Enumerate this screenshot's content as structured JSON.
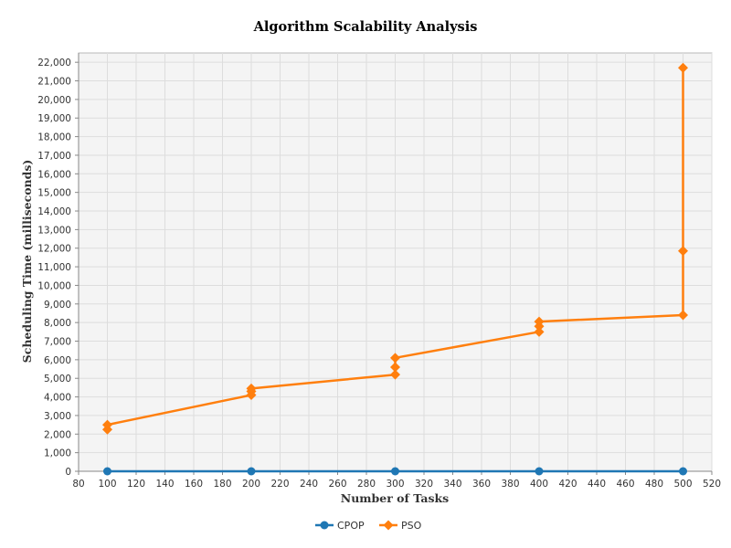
{
  "chart_data": {
    "type": "line",
    "title": "Algorithm Scalability Analysis",
    "xlabel": "Number of Tasks",
    "ylabel": "Scheduling Time (milliseconds)",
    "xlim": [
      80,
      520
    ],
    "ylim": [
      0,
      22500
    ],
    "x_ticks": [
      80,
      100,
      120,
      140,
      160,
      180,
      200,
      220,
      240,
      260,
      280,
      300,
      320,
      340,
      360,
      380,
      400,
      420,
      440,
      460,
      480,
      500,
      520
    ],
    "y_ticks": [
      0,
      1000,
      2000,
      3000,
      4000,
      5000,
      6000,
      7000,
      8000,
      9000,
      10000,
      11000,
      12000,
      13000,
      14000,
      15000,
      16000,
      17000,
      18000,
      19000,
      20000,
      21000,
      22000
    ],
    "grid": true,
    "legend_position": "bottom",
    "series": [
      {
        "name": "CPOP",
        "color": "#1f77b4",
        "marker": "circle",
        "points": [
          [
            100,
            0
          ],
          [
            200,
            0
          ],
          [
            300,
            0
          ],
          [
            400,
            0
          ],
          [
            500,
            0
          ]
        ]
      },
      {
        "name": "PSO",
        "color": "#ff7f0e",
        "marker": "diamond",
        "points": [
          [
            100,
            2250
          ],
          [
            100,
            2500
          ],
          [
            200,
            4100
          ],
          [
            200,
            4300
          ],
          [
            200,
            4450
          ],
          [
            300,
            5200
          ],
          [
            300,
            5600
          ],
          [
            300,
            6100
          ],
          [
            400,
            7500
          ],
          [
            400,
            7800
          ],
          [
            400,
            8050
          ],
          [
            500,
            8400
          ],
          [
            500,
            11850
          ],
          [
            500,
            21700
          ]
        ]
      }
    ]
  }
}
